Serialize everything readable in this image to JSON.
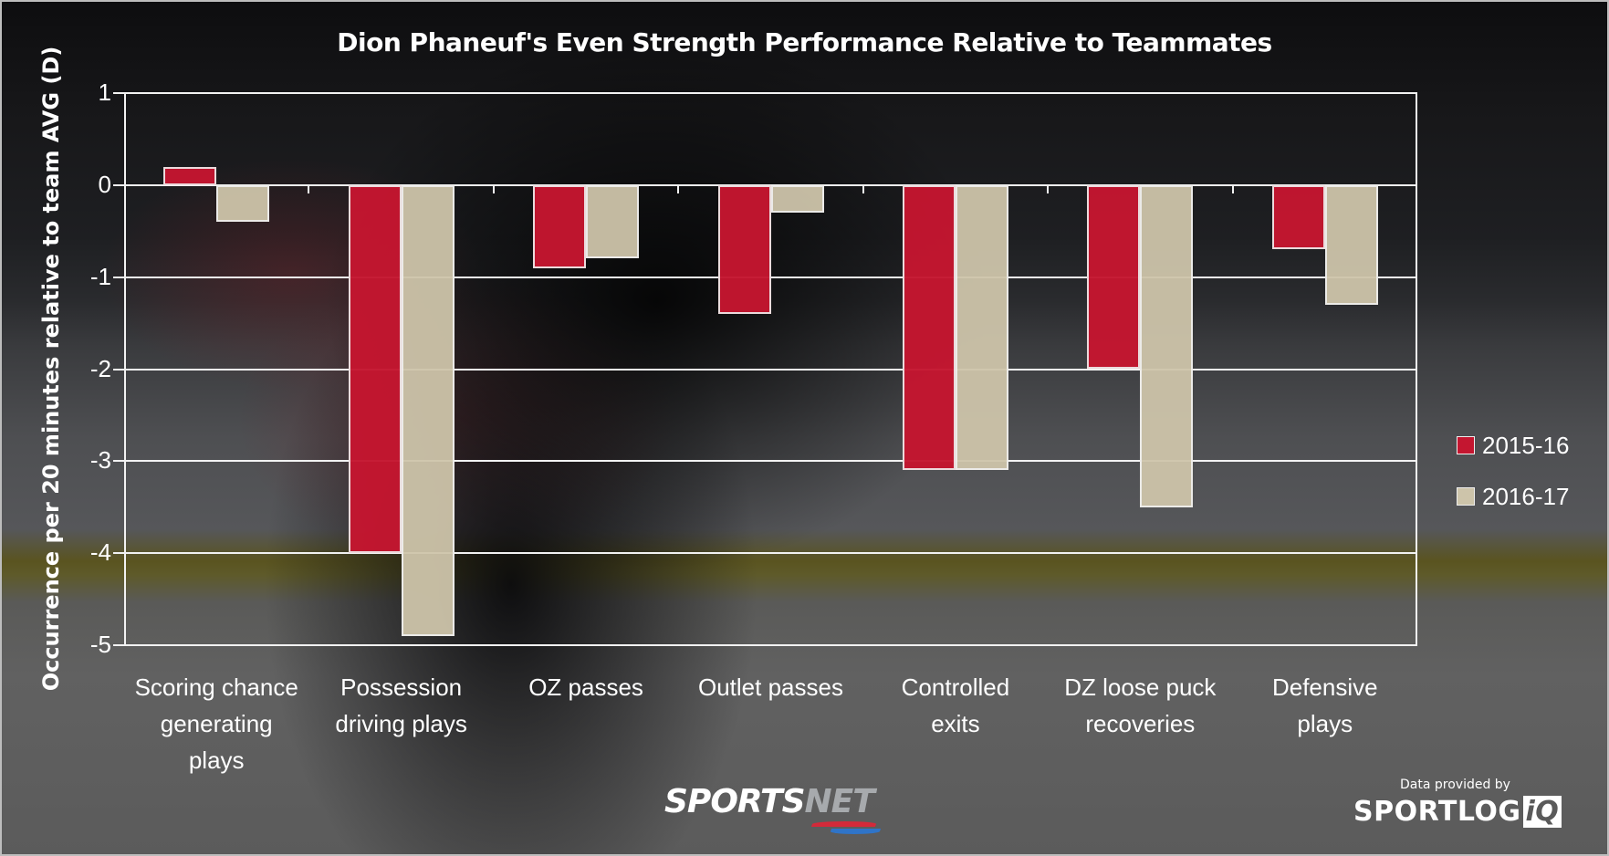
{
  "title": "Dion Phaneuf's Even Strength Performance Relative to Teammates",
  "y_axis": {
    "label": "Occurrence per 20 minutes relative to team AVG (D)",
    "ticks": [
      "1",
      "0",
      "-1",
      "-2",
      "-3",
      "-4",
      "-5"
    ]
  },
  "legend": {
    "items": [
      {
        "label": "2015-16",
        "color": "#c41630"
      },
      {
        "label": "2016-17",
        "color": "#cdc4aa"
      }
    ]
  },
  "categories": [
    {
      "line1": "Scoring chance",
      "line2": "generating",
      "line3": "plays"
    },
    {
      "line1": "Possession",
      "line2": "driving plays",
      "line3": ""
    },
    {
      "line1": "OZ passes",
      "line2": "",
      "line3": ""
    },
    {
      "line1": "Outlet passes",
      "line2": "",
      "line3": ""
    },
    {
      "line1": "Controlled",
      "line2": "exits",
      "line3": ""
    },
    {
      "line1": "DZ loose puck",
      "line2": "recoveries",
      "line3": ""
    },
    {
      "line1": "Defensive",
      "line2": "plays",
      "line3": ""
    }
  ],
  "branding": {
    "sportsnet_a": "SPORTS",
    "sportsnet_b": "NET",
    "provided_by": "Data provided by",
    "sportlogiq_a": "SPORTLOG",
    "sportlogiq_b": "iQ"
  },
  "chart_data": {
    "type": "bar",
    "title": "Dion Phaneuf's Even Strength Performance Relative to Teammates",
    "xlabel": "",
    "ylabel": "Occurrence per 20 minutes relative to team AVG (D)",
    "ylim": [
      -5,
      1
    ],
    "yticks": [
      1,
      0,
      -1,
      -2,
      -3,
      -4,
      -5
    ],
    "grid": true,
    "legend_position": "right",
    "categories": [
      "Scoring chance generating plays",
      "Possession driving plays",
      "OZ passes",
      "Outlet passes",
      "Controlled exits",
      "DZ loose puck recoveries",
      "Defensive plays"
    ],
    "series": [
      {
        "name": "2015-16",
        "color": "#c41630",
        "values": [
          0.2,
          -4.0,
          -0.9,
          -1.4,
          -3.1,
          -2.0,
          -0.7
        ]
      },
      {
        "name": "2016-17",
        "color": "#cdc4aa",
        "values": [
          -0.4,
          -4.9,
          -0.8,
          -0.3,
          -3.1,
          -3.5,
          -1.3
        ]
      }
    ]
  }
}
